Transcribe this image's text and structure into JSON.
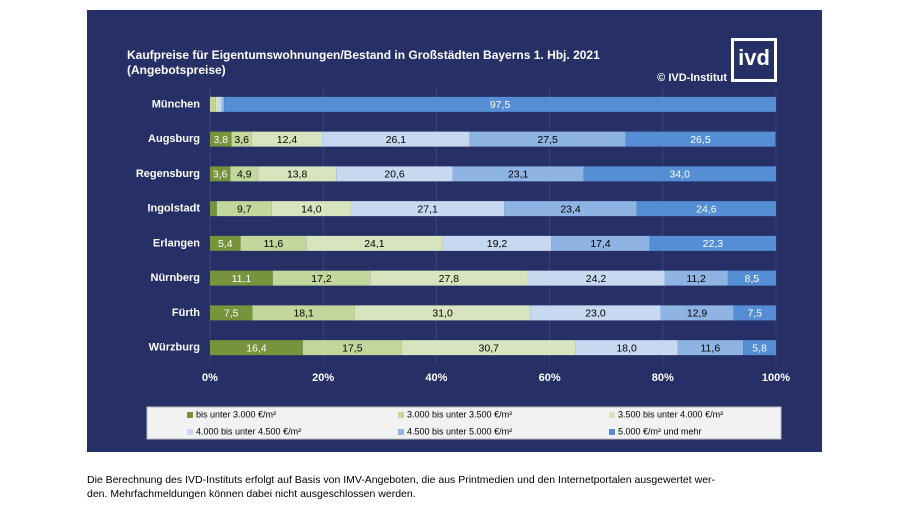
{
  "chart_data": {
    "type": "stacked-barh",
    "title": "Kaufpreise für Eigentumswohnungen/Bestand in Großstädten Bayerns 1. Hbj. 2021",
    "subtitle": "(Angebotspreise)",
    "source": "© IVD-Institut",
    "logo": "ivd",
    "categories": [
      "München",
      "Augsburg",
      "Regensburg",
      "Ingolstadt",
      "Erlangen",
      "Nürnberg",
      "Fürth",
      "Würzburg"
    ],
    "series": [
      {
        "name": "bis unter 3.000  €/m²",
        "color": "#77933c",
        "label_color": "#ffffff",
        "values": [
          0,
          3.8,
          3.6,
          1.2,
          5.4,
          11.1,
          7.5,
          16.4
        ],
        "value_labels": [
          null,
          "3,8",
          "3,6",
          null,
          "5,4",
          "11,1",
          "7,5",
          "16,4"
        ]
      },
      {
        "name": "3.000 bis unter 3.500 €/m²",
        "color": "#c3d69b",
        "label_color": "#000000",
        "values": [
          1.0,
          3.6,
          4.9,
          9.7,
          11.6,
          17.2,
          18.1,
          17.5
        ],
        "value_labels": [
          null,
          "3,6",
          "4,9",
          "9,7",
          "11,6",
          "17,2",
          "18,1",
          "17,5"
        ]
      },
      {
        "name": "3.500 bis unter 4.000 €/m²",
        "color": "#d7e4bd",
        "label_color": "#000000",
        "values": [
          0.5,
          12.4,
          13.8,
          14.0,
          24.1,
          27.8,
          31.0,
          30.7
        ],
        "value_labels": [
          null,
          "12,4",
          "13,8",
          "14,0",
          "24,1",
          "27,8",
          "31,0",
          "30,7"
        ]
      },
      {
        "name": "4.000 bis unter 4.500 €/m²",
        "color": "#c6d9f1",
        "label_color": "#000000",
        "values": [
          0.6,
          26.1,
          20.6,
          27.1,
          19.2,
          24.2,
          23.0,
          18.0
        ],
        "value_labels": [
          null,
          "26,1",
          "20,6",
          "27,1",
          "19,2",
          "24,2",
          "23,0",
          "18,0"
        ]
      },
      {
        "name": "4.500 bis unter 5.000 €/m²",
        "color": "#8db4e2",
        "label_color": "#000000",
        "values": [
          0.4,
          27.5,
          23.1,
          23.4,
          17.4,
          11.2,
          12.9,
          11.6
        ],
        "value_labels": [
          null,
          "27,5",
          "23,1",
          "23,4",
          "17,4",
          "11,2",
          "12,9",
          "11,6"
        ]
      },
      {
        "name": "5.000 €/m² und mehr",
        "color": "#558ed5",
        "label_color": "#ffffff",
        "values": [
          97.5,
          26.5,
          34.0,
          24.6,
          22.3,
          8.5,
          7.5,
          5.8
        ],
        "value_labels": [
          "97,5",
          "26,5",
          "34,0",
          "24,6",
          "22,3",
          "8,5",
          "7,5",
          "5,8"
        ]
      }
    ],
    "xlim": [
      0,
      100
    ],
    "xticks": [
      {
        "value": 0,
        "label": "0%"
      },
      {
        "value": 20,
        "label": "20%"
      },
      {
        "value": 40,
        "label": "40%"
      },
      {
        "value": 60,
        "label": "60%"
      },
      {
        "value": 80,
        "label": "80%"
      },
      {
        "value": 100,
        "label": "100%"
      }
    ],
    "footnote": [
      "Die Berechnung des IVD-Instituts erfolgt auf Basis von IMV-Angeboten, die aus Printmedien und den Internetportalen ausgewertet wer-",
      "den. Mehrfachmeldungen können dabei nicht ausgeschlossen werden."
    ]
  }
}
